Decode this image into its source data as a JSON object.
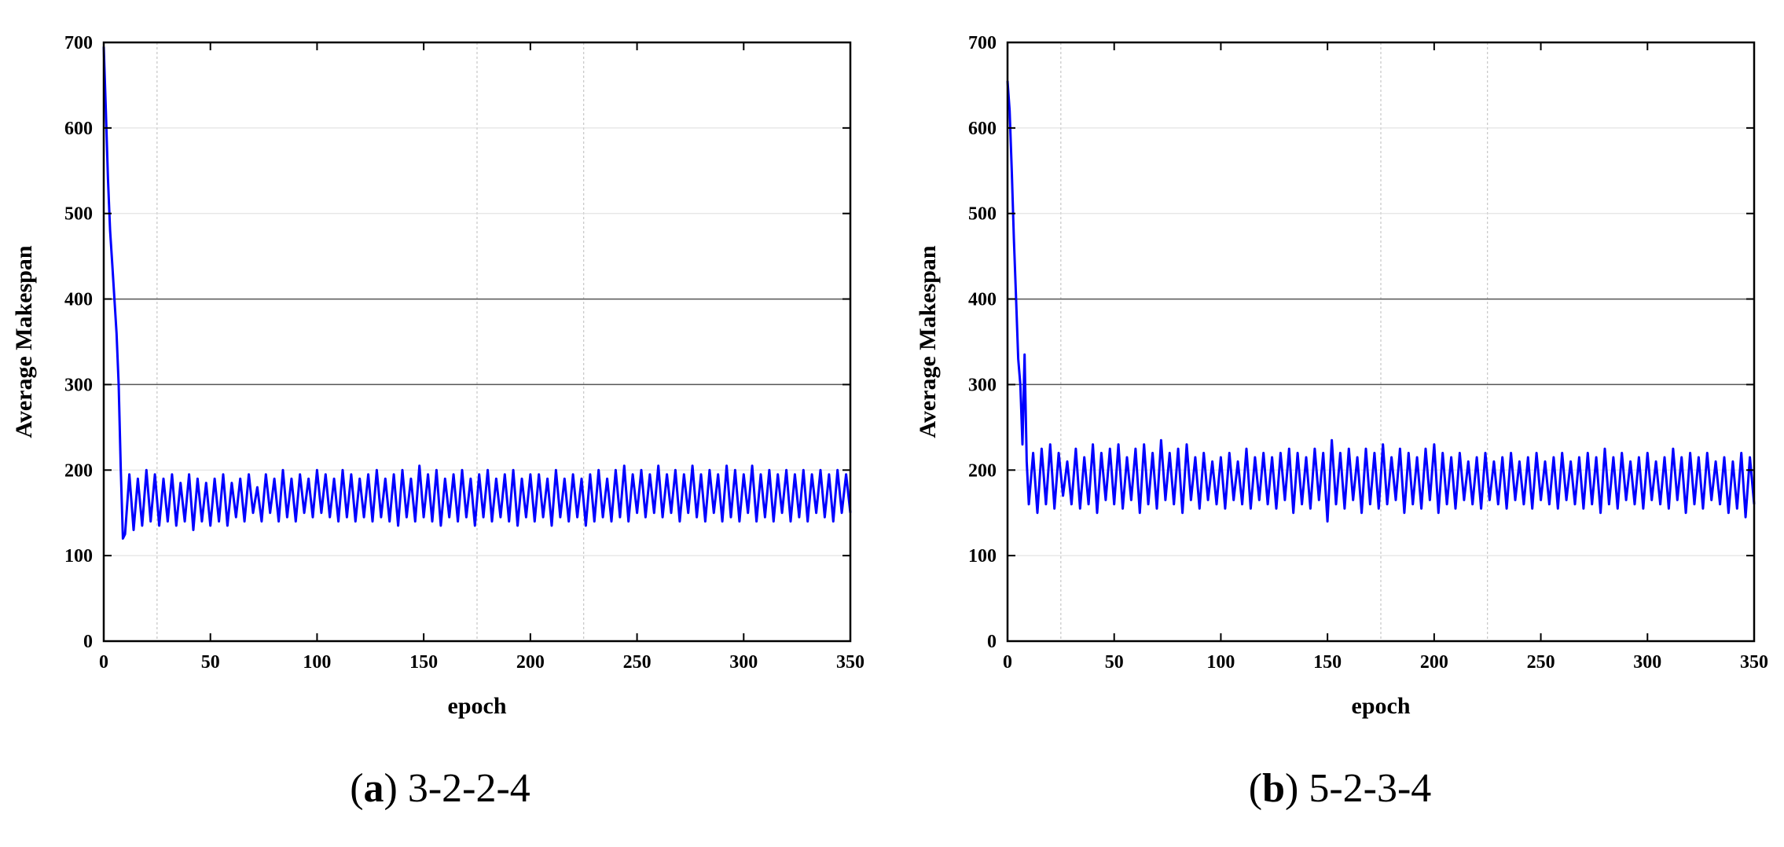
{
  "figure": {
    "panels": [
      {
        "caption_letter": "a",
        "caption_text": "3-2-2-4"
      },
      {
        "caption_letter": "b",
        "caption_text": "5-2-3-4"
      }
    ]
  },
  "chart_data": [
    {
      "type": "line",
      "xlabel": "epoch",
      "ylabel": "Average Makespan",
      "xlim": [
        0,
        350
      ],
      "ylim": [
        0,
        700
      ],
      "xticks": [
        0,
        50,
        100,
        150,
        200,
        250,
        300,
        350
      ],
      "yticks": [
        0,
        100,
        200,
        300,
        400,
        500,
        600,
        700
      ],
      "grid": true,
      "series": [
        {
          "color": "#0000ff",
          "x": [
            0,
            1,
            2,
            3,
            4,
            5,
            6,
            7,
            8,
            9,
            10,
            12,
            14,
            16,
            18,
            20,
            22,
            24,
            26,
            28,
            30,
            32,
            34,
            36,
            38,
            40,
            42,
            44,
            46,
            48,
            50,
            52,
            54,
            56,
            58,
            60,
            62,
            64,
            66,
            68,
            70,
            72,
            74,
            76,
            78,
            80,
            82,
            84,
            86,
            88,
            90,
            92,
            94,
            96,
            98,
            100,
            102,
            104,
            106,
            108,
            110,
            112,
            114,
            116,
            118,
            120,
            122,
            124,
            126,
            128,
            130,
            132,
            134,
            136,
            138,
            140,
            142,
            144,
            146,
            148,
            150,
            152,
            154,
            156,
            158,
            160,
            162,
            164,
            166,
            168,
            170,
            172,
            174,
            176,
            178,
            180,
            182,
            184,
            186,
            188,
            190,
            192,
            194,
            196,
            198,
            200,
            202,
            204,
            206,
            208,
            210,
            212,
            214,
            216,
            218,
            220,
            222,
            224,
            226,
            228,
            230,
            232,
            234,
            236,
            238,
            240,
            242,
            244,
            246,
            248,
            250,
            252,
            254,
            256,
            258,
            260,
            262,
            264,
            266,
            268,
            270,
            272,
            274,
            276,
            278,
            280,
            282,
            284,
            286,
            288,
            290,
            292,
            294,
            296,
            298,
            300,
            302,
            304,
            306,
            308,
            310,
            312,
            314,
            316,
            318,
            320,
            322,
            324,
            326,
            328,
            330,
            332,
            334,
            336,
            338,
            340,
            342,
            344,
            346,
            348,
            350
          ],
          "y": [
            695,
            620,
            540,
            480,
            440,
            400,
            360,
            300,
            200,
            120,
            125,
            195,
            130,
            190,
            135,
            200,
            140,
            195,
            135,
            190,
            140,
            195,
            135,
            185,
            140,
            195,
            130,
            190,
            140,
            185,
            135,
            190,
            140,
            195,
            135,
            185,
            145,
            190,
            140,
            195,
            150,
            180,
            140,
            195,
            150,
            190,
            140,
            200,
            145,
            190,
            140,
            195,
            150,
            190,
            145,
            200,
            150,
            195,
            145,
            190,
            140,
            200,
            145,
            195,
            140,
            190,
            145,
            195,
            140,
            200,
            145,
            190,
            140,
            195,
            135,
            200,
            145,
            190,
            140,
            205,
            145,
            195,
            140,
            200,
            135,
            190,
            145,
            195,
            140,
            200,
            145,
            190,
            135,
            195,
            145,
            200,
            140,
            190,
            145,
            195,
            140,
            200,
            135,
            190,
            145,
            195,
            140,
            195,
            145,
            190,
            135,
            200,
            145,
            190,
            140,
            195,
            145,
            190,
            135,
            195,
            140,
            200,
            145,
            190,
            140,
            200,
            145,
            205,
            140,
            195,
            150,
            200,
            145,
            195,
            150,
            205,
            145,
            195,
            150,
            200,
            140,
            195,
            150,
            205,
            145,
            195,
            140,
            200,
            150,
            195,
            140,
            205,
            145,
            200,
            140,
            195,
            150,
            205,
            140,
            195,
            145,
            200,
            140,
            195,
            150,
            200,
            140,
            195,
            145,
            200,
            140,
            195,
            150,
            200,
            145,
            195,
            140,
            200,
            150,
            195,
            150
          ]
        }
      ]
    },
    {
      "type": "line",
      "xlabel": "epoch",
      "ylabel": "Average Makespan",
      "xlim": [
        0,
        350
      ],
      "ylim": [
        0,
        700
      ],
      "xticks": [
        0,
        50,
        100,
        150,
        200,
        250,
        300,
        350
      ],
      "yticks": [
        0,
        100,
        200,
        300,
        400,
        500,
        600,
        700
      ],
      "grid": true,
      "series": [
        {
          "color": "#0000ff",
          "x": [
            0,
            1,
            2,
            3,
            4,
            5,
            6,
            7,
            8,
            9,
            10,
            12,
            14,
            16,
            18,
            20,
            22,
            24,
            26,
            28,
            30,
            32,
            34,
            36,
            38,
            40,
            42,
            44,
            46,
            48,
            50,
            52,
            54,
            56,
            58,
            60,
            62,
            64,
            66,
            68,
            70,
            72,
            74,
            76,
            78,
            80,
            82,
            84,
            86,
            88,
            90,
            92,
            94,
            96,
            98,
            100,
            102,
            104,
            106,
            108,
            110,
            112,
            114,
            116,
            118,
            120,
            122,
            124,
            126,
            128,
            130,
            132,
            134,
            136,
            138,
            140,
            142,
            144,
            146,
            148,
            150,
            152,
            154,
            156,
            158,
            160,
            162,
            164,
            166,
            168,
            170,
            172,
            174,
            176,
            178,
            180,
            182,
            184,
            186,
            188,
            190,
            192,
            194,
            196,
            198,
            200,
            202,
            204,
            206,
            208,
            210,
            212,
            214,
            216,
            218,
            220,
            222,
            224,
            226,
            228,
            230,
            232,
            234,
            236,
            238,
            240,
            242,
            244,
            246,
            248,
            250,
            252,
            254,
            256,
            258,
            260,
            262,
            264,
            266,
            268,
            270,
            272,
            274,
            276,
            278,
            280,
            282,
            284,
            286,
            288,
            290,
            292,
            294,
            296,
            298,
            300,
            302,
            304,
            306,
            308,
            310,
            312,
            314,
            316,
            318,
            320,
            322,
            324,
            326,
            328,
            330,
            332,
            334,
            336,
            338,
            340,
            342,
            344,
            346,
            348,
            350
          ],
          "y": [
            655,
            620,
            550,
            470,
            400,
            330,
            300,
            230,
            335,
            210,
            160,
            220,
            150,
            225,
            160,
            230,
            155,
            220,
            170,
            210,
            160,
            225,
            155,
            215,
            160,
            230,
            150,
            220,
            165,
            225,
            160,
            230,
            155,
            215,
            165,
            225,
            150,
            230,
            160,
            220,
            155,
            235,
            165,
            220,
            160,
            225,
            150,
            230,
            165,
            215,
            155,
            220,
            165,
            210,
            160,
            215,
            155,
            220,
            165,
            210,
            160,
            225,
            155,
            215,
            165,
            220,
            160,
            215,
            155,
            220,
            165,
            225,
            150,
            220,
            160,
            215,
            155,
            225,
            165,
            220,
            140,
            235,
            160,
            220,
            155,
            225,
            165,
            215,
            150,
            225,
            160,
            220,
            155,
            230,
            160,
            215,
            165,
            225,
            150,
            220,
            160,
            215,
            155,
            225,
            165,
            230,
            150,
            220,
            160,
            215,
            155,
            220,
            165,
            210,
            160,
            215,
            155,
            220,
            165,
            210,
            160,
            215,
            155,
            220,
            165,
            210,
            160,
            215,
            155,
            220,
            165,
            210,
            160,
            215,
            155,
            220,
            165,
            210,
            160,
            215,
            155,
            220,
            160,
            215,
            150,
            225,
            160,
            215,
            155,
            220,
            165,
            210,
            160,
            215,
            155,
            220,
            165,
            210,
            160,
            215,
            155,
            225,
            165,
            215,
            150,
            220,
            160,
            215,
            155,
            220,
            165,
            210,
            160,
            215,
            150,
            210,
            155,
            220,
            145,
            215,
            160
          ]
        }
      ]
    }
  ]
}
